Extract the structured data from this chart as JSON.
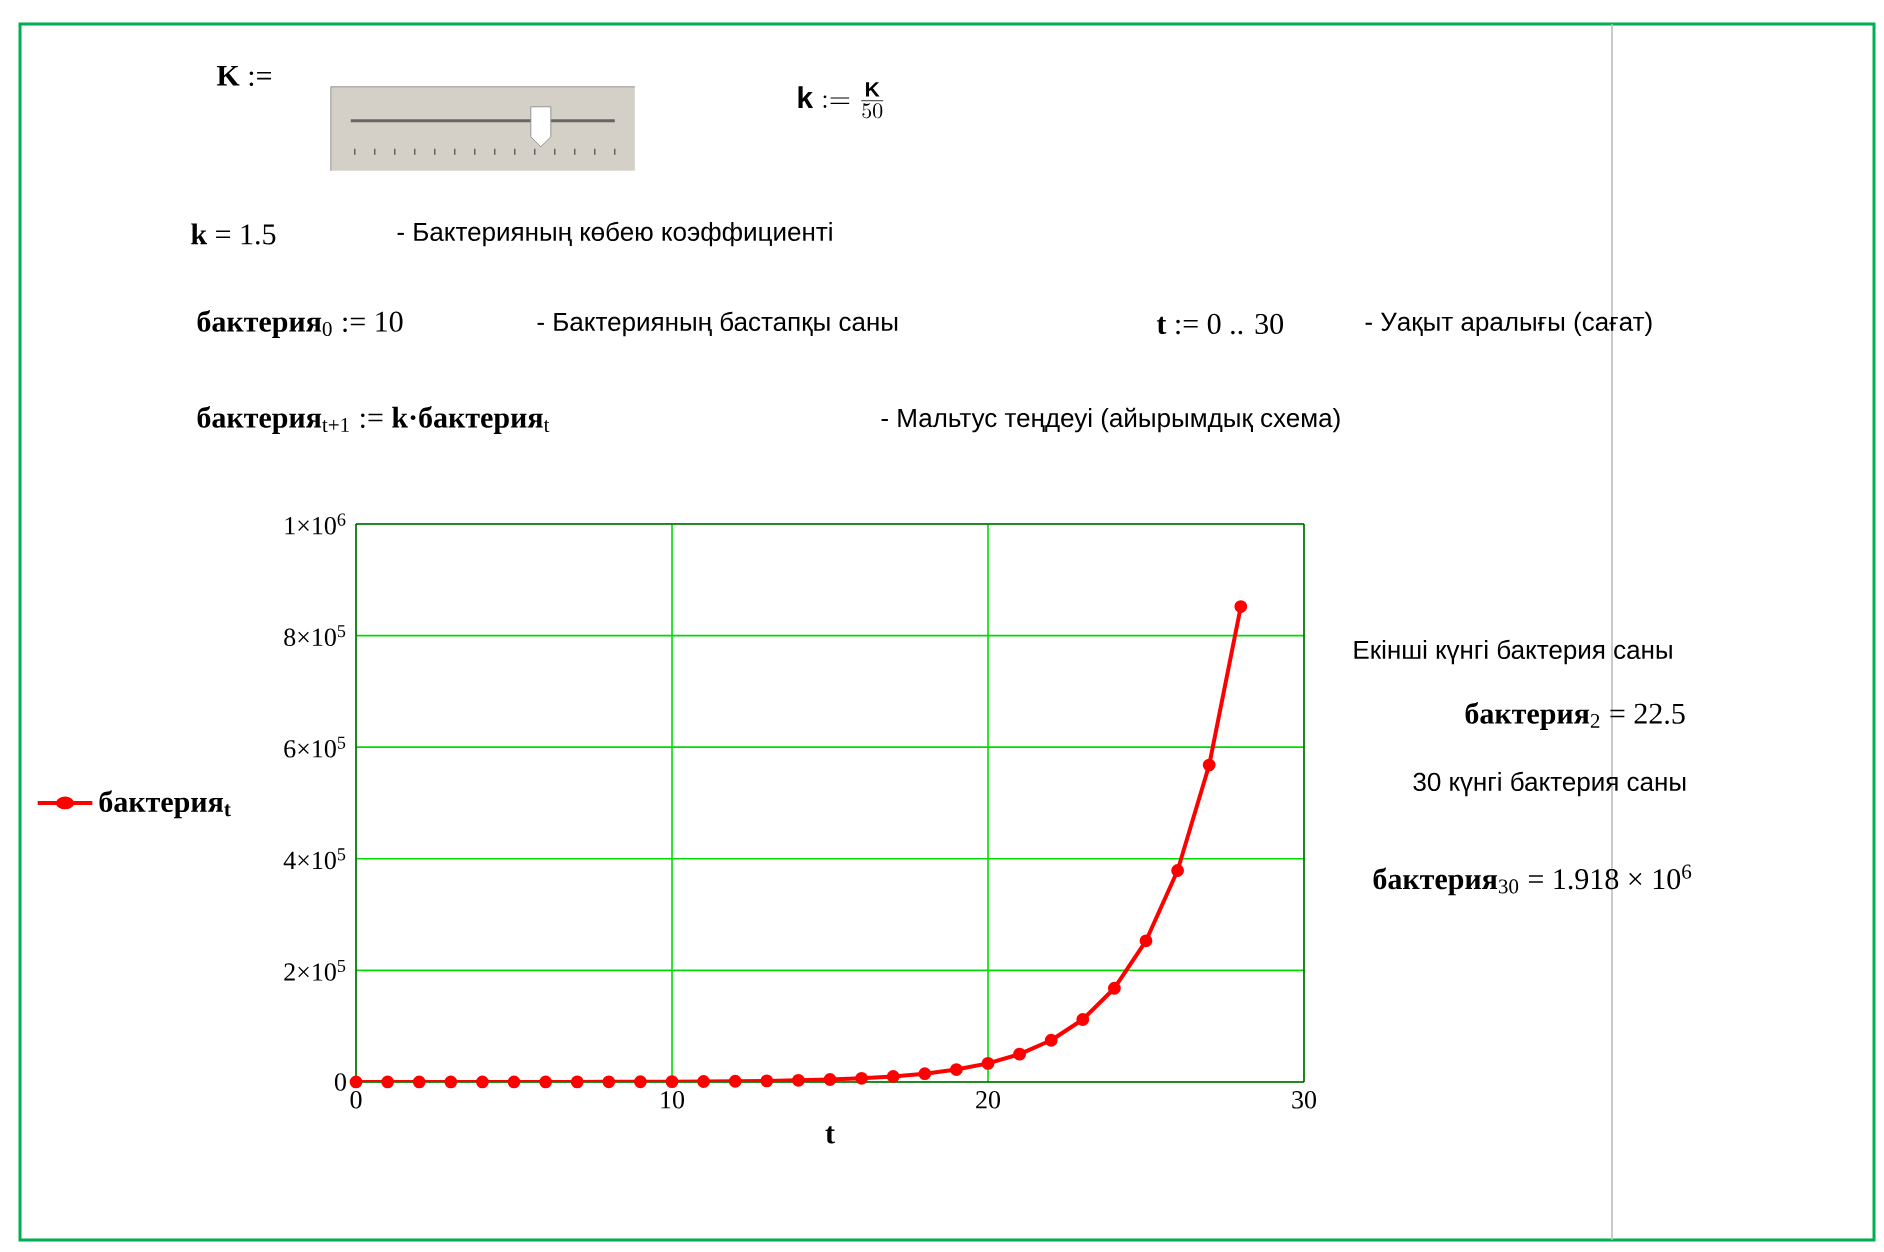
{
  "chart_data": {
    "type": "line",
    "xlabel": "t",
    "x": [
      0,
      1,
      2,
      3,
      4,
      5,
      6,
      7,
      8,
      9,
      10,
      11,
      12,
      13,
      14,
      15,
      16,
      17,
      18,
      19,
      20,
      21,
      22,
      23,
      24,
      25,
      26,
      27,
      28
    ],
    "series": [
      {
        "name": "бактерия$_{t}$",
        "color": "#ff0000",
        "values": [
          10,
          15,
          22.5,
          33.8,
          50.6,
          75.9,
          114,
          171,
          256,
          384,
          577,
          865,
          1300,
          1950,
          2920,
          4380,
          6570,
          9850,
          14800,
          22200,
          33300,
          49900,
          74800,
          112000,
          168000,
          253000,
          379000,
          568000,
          852000
        ]
      }
    ],
    "xlim": [
      0,
      30
    ],
    "xticks": [
      0,
      10,
      20,
      30
    ],
    "ylim": [
      0,
      1000000
    ],
    "yticks": [
      0,
      {
        "value": 200000,
        "label": "2×10$^{5}$"
      },
      {
        "value": 400000,
        "label": "4×10$^{5}$"
      },
      {
        "value": 600000,
        "label": "6×10$^{5}$"
      },
      {
        "value": 800000,
        "label": "8×10$^{5}$"
      },
      {
        "value": 1000000,
        "label": "1×10$^{6}$"
      }
    ],
    "grid": true,
    "legend": "left",
    "marker": "circle",
    "line_style": "solid",
    "annotations": [
      "**K** :=",
      "\\mathbf{k} := \\frac{\\mathbf{K}}{50}",
      "**k** = 1.5",
      "- Бактерияның көбею коэффициенті",
      "**бактерия**$_{0}$ := 10",
      "- Бактерияның бастапқы саны",
      "**t** := 0 .. 30",
      "- Уақыт аралығы (сағат)",
      "**бактерия**$_{t+1}$ := **k·бактерия**$_{t}$",
      "- Мальтус теңдеуі (айырымдық схема)",
      "Екінші күнгі бактерия саны",
      "**бактерия**$_{2}$ = 22.5",
      "30 күнгі бактерия саны",
      "**бактерия**$_{30}$ = 1.918 × 10$^{6}$"
    ]
  }
}
